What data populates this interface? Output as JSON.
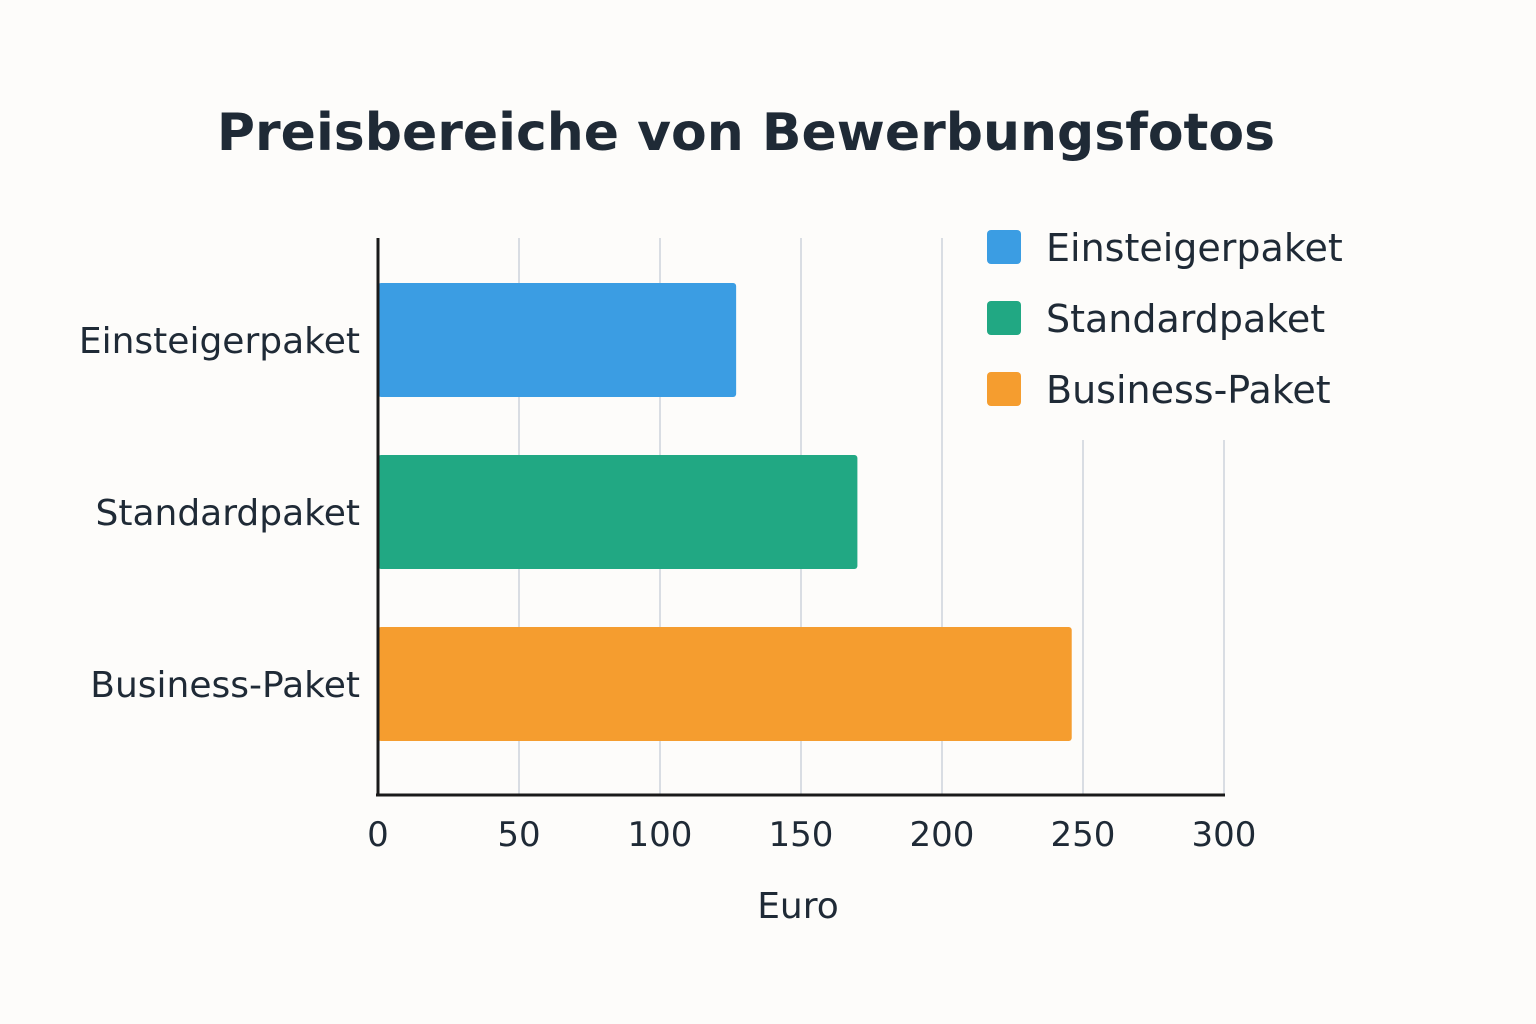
{
  "chart_data": {
    "type": "bar",
    "orientation": "horizontal",
    "title": "Preisbereiche von Bewerbungsfotos",
    "categories": [
      "Einsteigerpaket",
      "Standardpaket",
      "Business-Paket"
    ],
    "values": [
      127,
      170,
      246
    ],
    "colors": [
      "#3b9de3",
      "#21a883",
      "#f59d2f"
    ],
    "xlabel": "Euro",
    "ylabel": "",
    "xlim": [
      0,
      300
    ],
    "xticks": [
      0,
      50,
      100,
      150,
      200,
      250,
      300
    ],
    "grid": true,
    "legend": {
      "placement": "top-right",
      "entries": [
        {
          "label": "Einsteigerpaket",
          "color": "#3b9de3"
        },
        {
          "label": "Standardpaket",
          "color": "#21a883"
        },
        {
          "label": "Business-Paket",
          "color": "#f59d2f"
        }
      ]
    }
  }
}
